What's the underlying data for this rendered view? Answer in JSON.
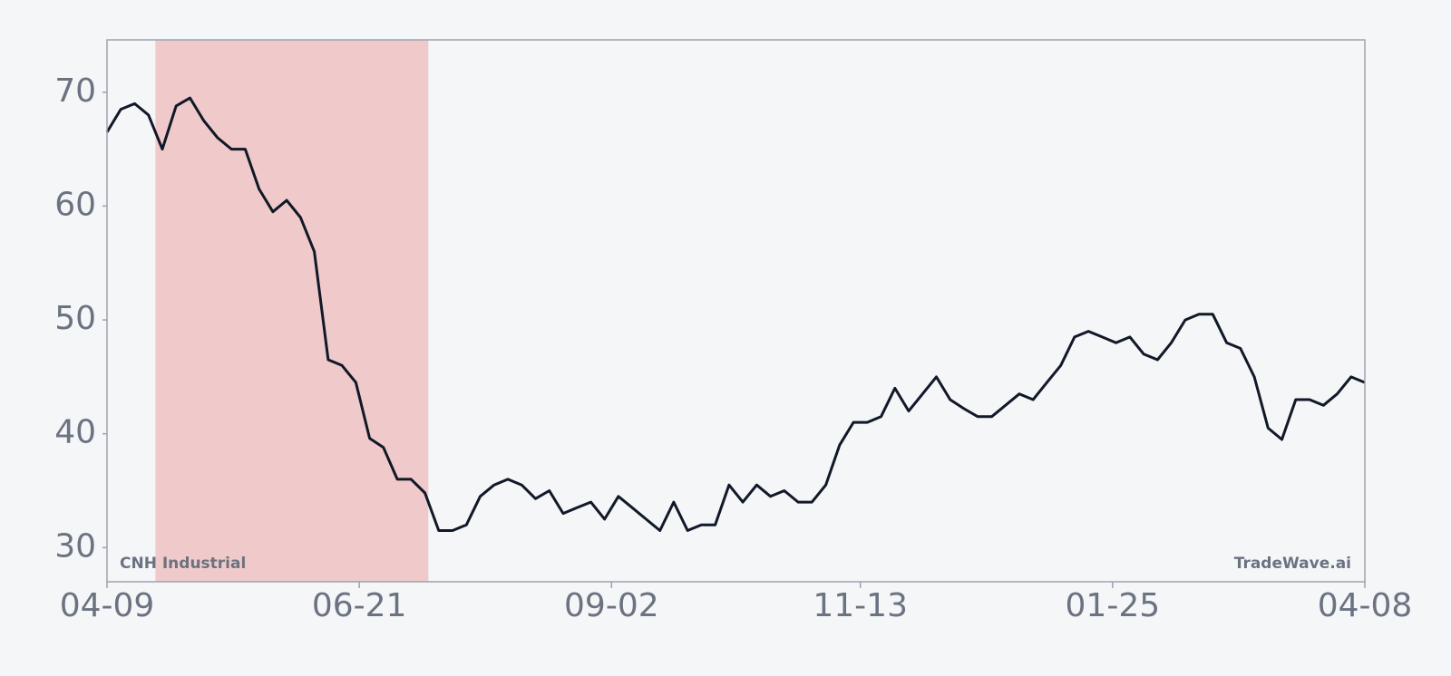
{
  "chart_data": {
    "type": "line",
    "annotations": {
      "left": "CNH Industrial",
      "right": "TradeWave.ai"
    },
    "x": [
      0,
      4,
      8,
      12,
      16,
      20,
      24,
      28,
      32,
      36,
      40,
      44,
      48,
      52,
      56,
      60,
      64,
      68,
      72,
      76,
      80,
      84,
      88,
      92,
      96,
      100,
      104,
      108,
      112,
      116,
      120,
      124,
      128,
      132,
      136,
      140,
      144,
      148,
      152,
      156,
      160,
      164,
      168,
      172,
      176,
      180,
      184,
      188,
      192,
      196,
      200,
      204,
      208,
      212,
      216,
      220,
      224,
      228,
      232,
      236,
      240,
      244,
      248,
      252,
      256,
      260,
      264,
      268,
      272,
      276,
      280,
      284,
      288,
      292,
      296,
      300,
      304,
      308,
      312,
      316,
      320,
      324,
      328,
      332,
      336,
      340,
      344,
      348,
      352,
      356,
      360,
      364
    ],
    "series": [
      {
        "color": "#111827",
        "values": [
          66.5,
          68.5,
          69,
          68,
          65,
          68.8,
          69.5,
          67.5,
          66,
          65,
          65,
          61.5,
          59.5,
          60.5,
          59,
          56,
          46.5,
          46,
          44.5,
          39.6,
          38.8,
          36,
          36,
          34.8,
          31.5,
          31.5,
          32,
          34.5,
          35.5,
          36,
          35.5,
          34.3,
          35,
          33,
          33.5,
          34,
          32.5,
          34.5,
          33.5,
          32.5,
          31.5,
          34,
          31.5,
          32,
          32,
          35.5,
          34,
          35.5,
          34.5,
          35,
          34,
          34,
          35.5,
          39,
          41,
          41,
          41.5,
          44,
          42,
          43.5,
          45,
          43,
          42.2,
          41.5,
          41.5,
          42.5,
          43.5,
          43,
          44.5,
          46,
          48.5,
          49,
          48.5,
          48,
          48.5,
          47,
          46.5,
          48,
          50,
          50.5,
          50.5,
          48,
          47.5,
          45,
          40.5,
          39.5,
          43,
          43,
          42.5,
          43.5,
          45,
          44.5
        ]
      }
    ],
    "highlight": {
      "xlim": [
        14,
        93
      ],
      "color": "#f0caca"
    },
    "xlim": [
      0,
      364
    ],
    "xticks": [
      {
        "value": 0,
        "label": "04-09"
      },
      {
        "value": 73,
        "label": "06-21"
      },
      {
        "value": 146,
        "label": "09-02"
      },
      {
        "value": 218,
        "label": "11-13"
      },
      {
        "value": 291,
        "label": "01-25"
      },
      {
        "value": 364,
        "label": "04-08"
      }
    ],
    "ylim": [
      27,
      74.6
    ],
    "yticks": [
      30,
      40,
      50,
      60,
      70
    ],
    "grid": false
  }
}
